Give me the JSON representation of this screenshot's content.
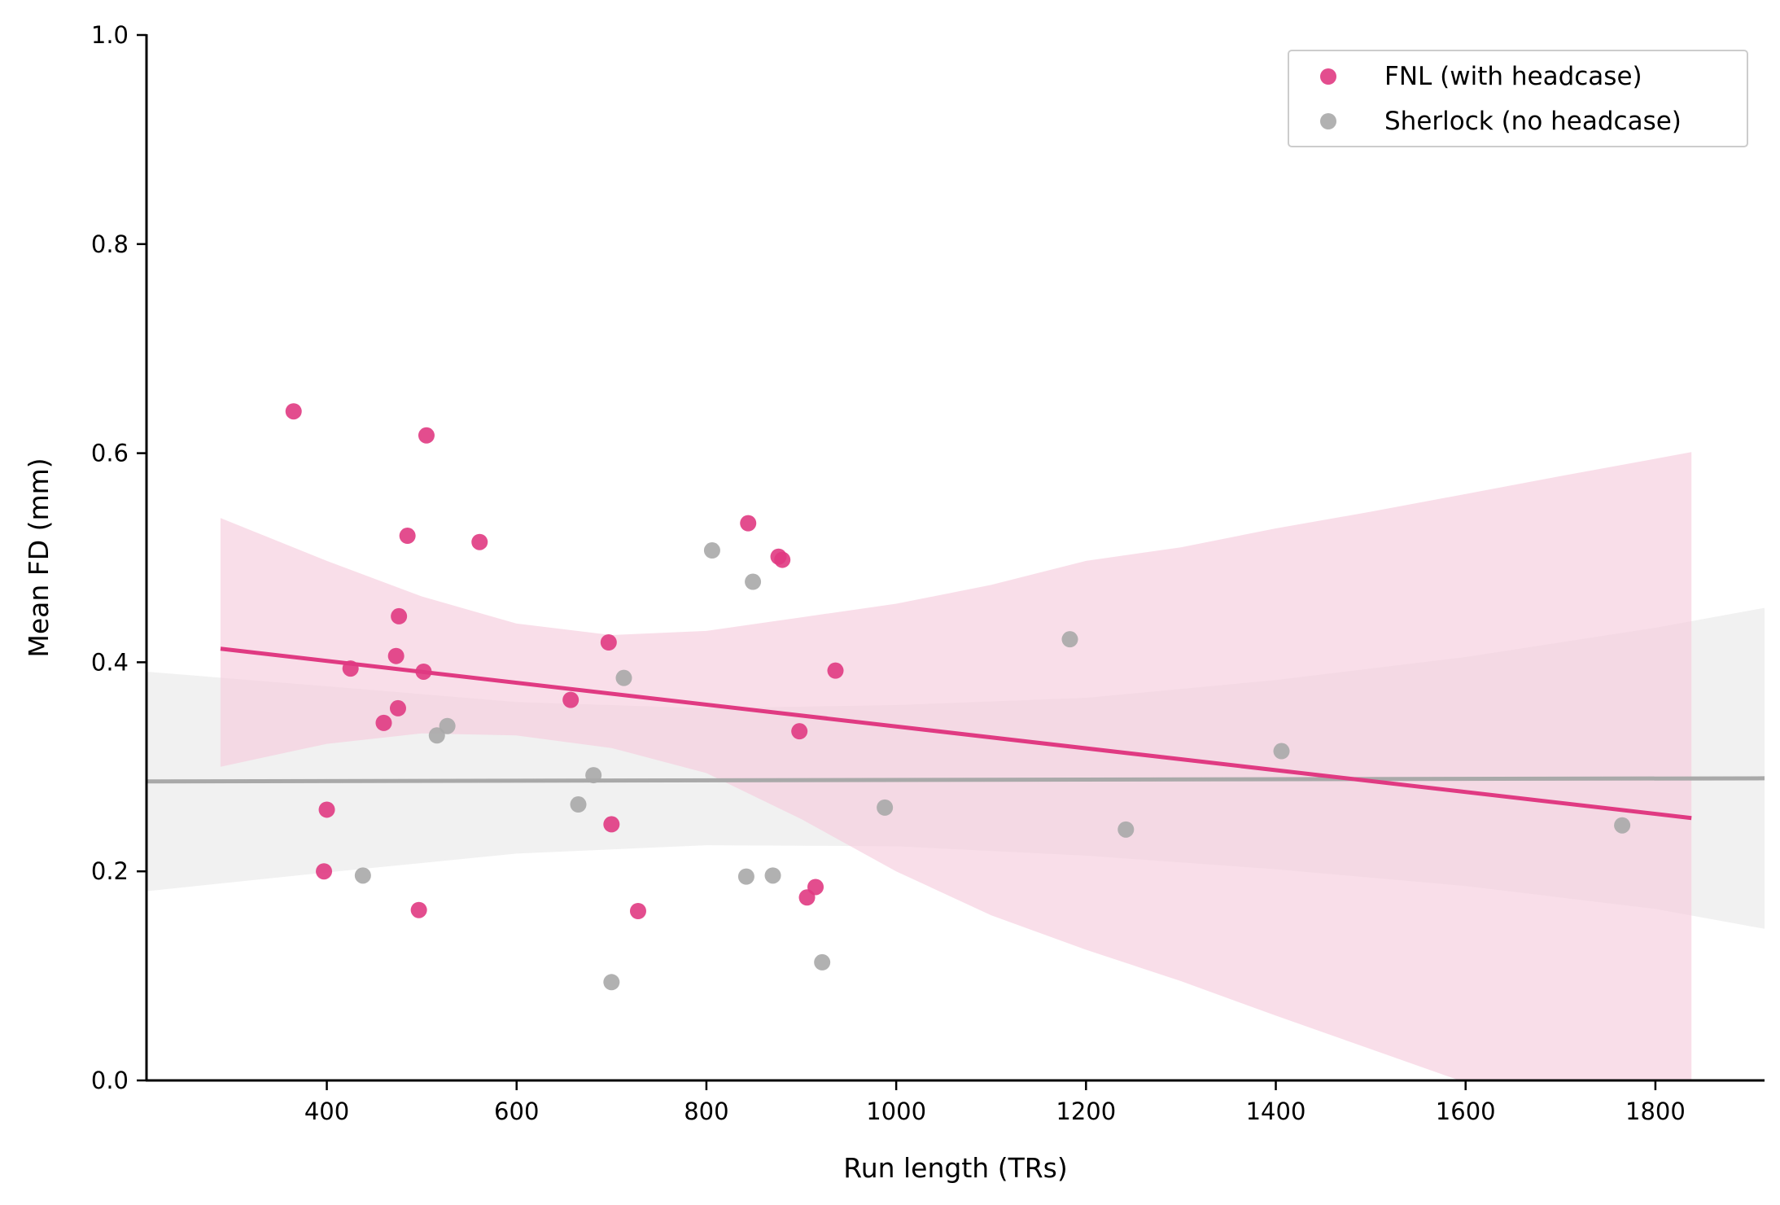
{
  "chart_data": {
    "type": "scatter",
    "title": "",
    "xlabel": "Run length (TRs)",
    "ylabel": "Mean FD (mm)",
    "xlim": [
      210,
      1915
    ],
    "ylim": [
      0.0,
      1.0
    ],
    "xticks": [
      400,
      600,
      800,
      1000,
      1200,
      1400,
      1600,
      1800
    ],
    "yticks": [
      0.0,
      0.2,
      0.4,
      0.6,
      0.8,
      1.0
    ],
    "xtick_labels": [
      "400",
      "600",
      "800",
      "1000",
      "1200",
      "1400",
      "1600",
      "1800"
    ],
    "ytick_labels": [
      "0.0",
      "0.2",
      "0.4",
      "0.6",
      "0.8",
      "1.0"
    ],
    "legend_position": "top-right",
    "grid": false,
    "series": [
      {
        "name": "FNL (with headcase)",
        "color": "#e03a82",
        "band_color": "#f6c9dc",
        "points": [
          [
            365,
            0.64
          ],
          [
            505,
            0.617
          ],
          [
            485,
            0.521
          ],
          [
            561,
            0.515
          ],
          [
            844,
            0.533
          ],
          [
            876,
            0.501
          ],
          [
            880,
            0.498
          ],
          [
            476,
            0.444
          ],
          [
            473,
            0.406
          ],
          [
            425,
            0.394
          ],
          [
            502,
            0.391
          ],
          [
            697,
            0.419
          ],
          [
            936,
            0.392
          ],
          [
            657,
            0.364
          ],
          [
            475,
            0.356
          ],
          [
            460,
            0.342
          ],
          [
            898,
            0.334
          ],
          [
            400,
            0.259
          ],
          [
            700,
            0.245
          ],
          [
            397,
            0.2
          ],
          [
            497,
            0.163
          ],
          [
            728,
            0.162
          ],
          [
            906,
            0.175
          ],
          [
            915,
            0.185
          ]
        ],
        "fit": {
          "x": [
            288,
            1838
          ],
          "y": [
            0.413,
            0.251
          ]
        },
        "ci": {
          "x": [
            288,
            400,
            500,
            600,
            700,
            800,
            900,
            1000,
            1100,
            1200,
            1300,
            1400,
            1500,
            1600,
            1700,
            1838
          ],
          "upper": [
            0.538,
            0.497,
            0.463,
            0.437,
            0.426,
            0.43,
            0.443,
            0.456,
            0.474,
            0.497,
            0.51,
            0.528,
            0.544,
            0.561,
            0.578,
            0.601
          ],
          "lower": [
            0.3,
            0.322,
            0.332,
            0.33,
            0.318,
            0.294,
            0.25,
            0.2,
            0.158,
            0.125,
            0.095,
            0.062,
            0.03,
            -0.002,
            -0.034,
            -0.08
          ]
        }
      },
      {
        "name": "Sherlock (no headcase)",
        "color": "#a9a9a9",
        "band_color": "#e8e8e8",
        "points": [
          [
            806,
            0.507
          ],
          [
            849,
            0.477
          ],
          [
            1183,
            0.422
          ],
          [
            713,
            0.385
          ],
          [
            527,
            0.339
          ],
          [
            516,
            0.33
          ],
          [
            1406,
            0.315
          ],
          [
            681,
            0.292
          ],
          [
            665,
            0.264
          ],
          [
            988,
            0.261
          ],
          [
            1242,
            0.24
          ],
          [
            1765,
            0.244
          ],
          [
            438,
            0.196
          ],
          [
            842,
            0.195
          ],
          [
            870,
            0.196
          ],
          [
            922,
            0.113
          ],
          [
            700,
            0.094
          ]
        ],
        "fit": {
          "x": [
            210,
            1915
          ],
          "y": [
            0.286,
            0.289
          ]
        },
        "ci": {
          "x": [
            210,
            400,
            600,
            800,
            1000,
            1200,
            1400,
            1600,
            1800,
            1915
          ],
          "upper": [
            0.391,
            0.377,
            0.362,
            0.356,
            0.359,
            0.366,
            0.383,
            0.405,
            0.433,
            0.452
          ],
          "lower": [
            0.181,
            0.199,
            0.217,
            0.225,
            0.224,
            0.215,
            0.202,
            0.186,
            0.164,
            0.145
          ]
        }
      }
    ]
  }
}
